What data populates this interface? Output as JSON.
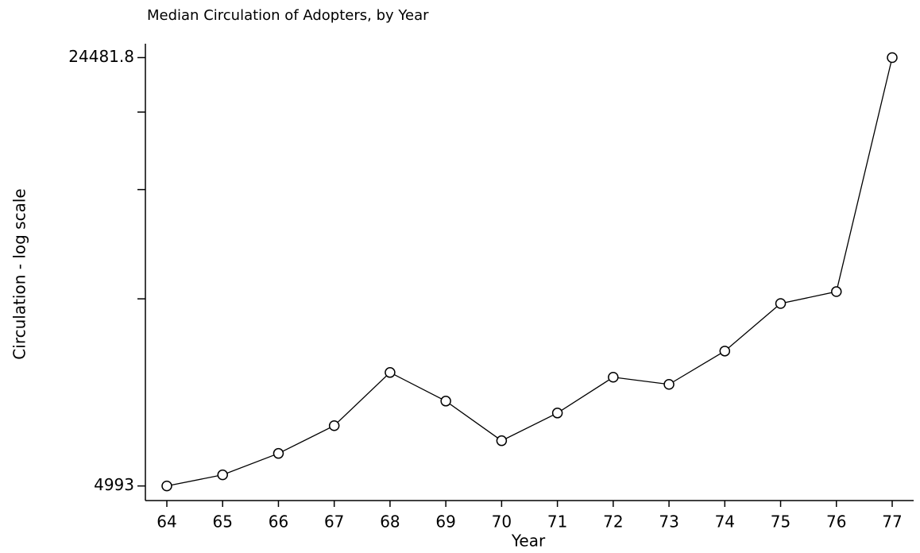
{
  "chart_data": {
    "type": "line",
    "title": "Median Circulation of Adopters, by Year",
    "x_label": "Year",
    "y_label": "Circulation - log scale",
    "categories": [
      "64",
      "65",
      "66",
      "67",
      "68",
      "69",
      "70",
      "71",
      "72",
      "73",
      "74",
      "75",
      "76",
      "77"
    ],
    "values": [
      4993,
      5203,
      5634,
      6245,
      7608,
      6842,
      5906,
      6546,
      7476,
      7280,
      8238,
      9828,
      10271,
      24481.8
    ],
    "color": "#000000",
    "log_y": true,
    "ylim": [
      4800,
      25400
    ],
    "yticks": [
      4993,
      24481.8
    ],
    "minor_yticks": [
      10000,
      15000,
      20000
    ],
    "marker": "circle"
  }
}
